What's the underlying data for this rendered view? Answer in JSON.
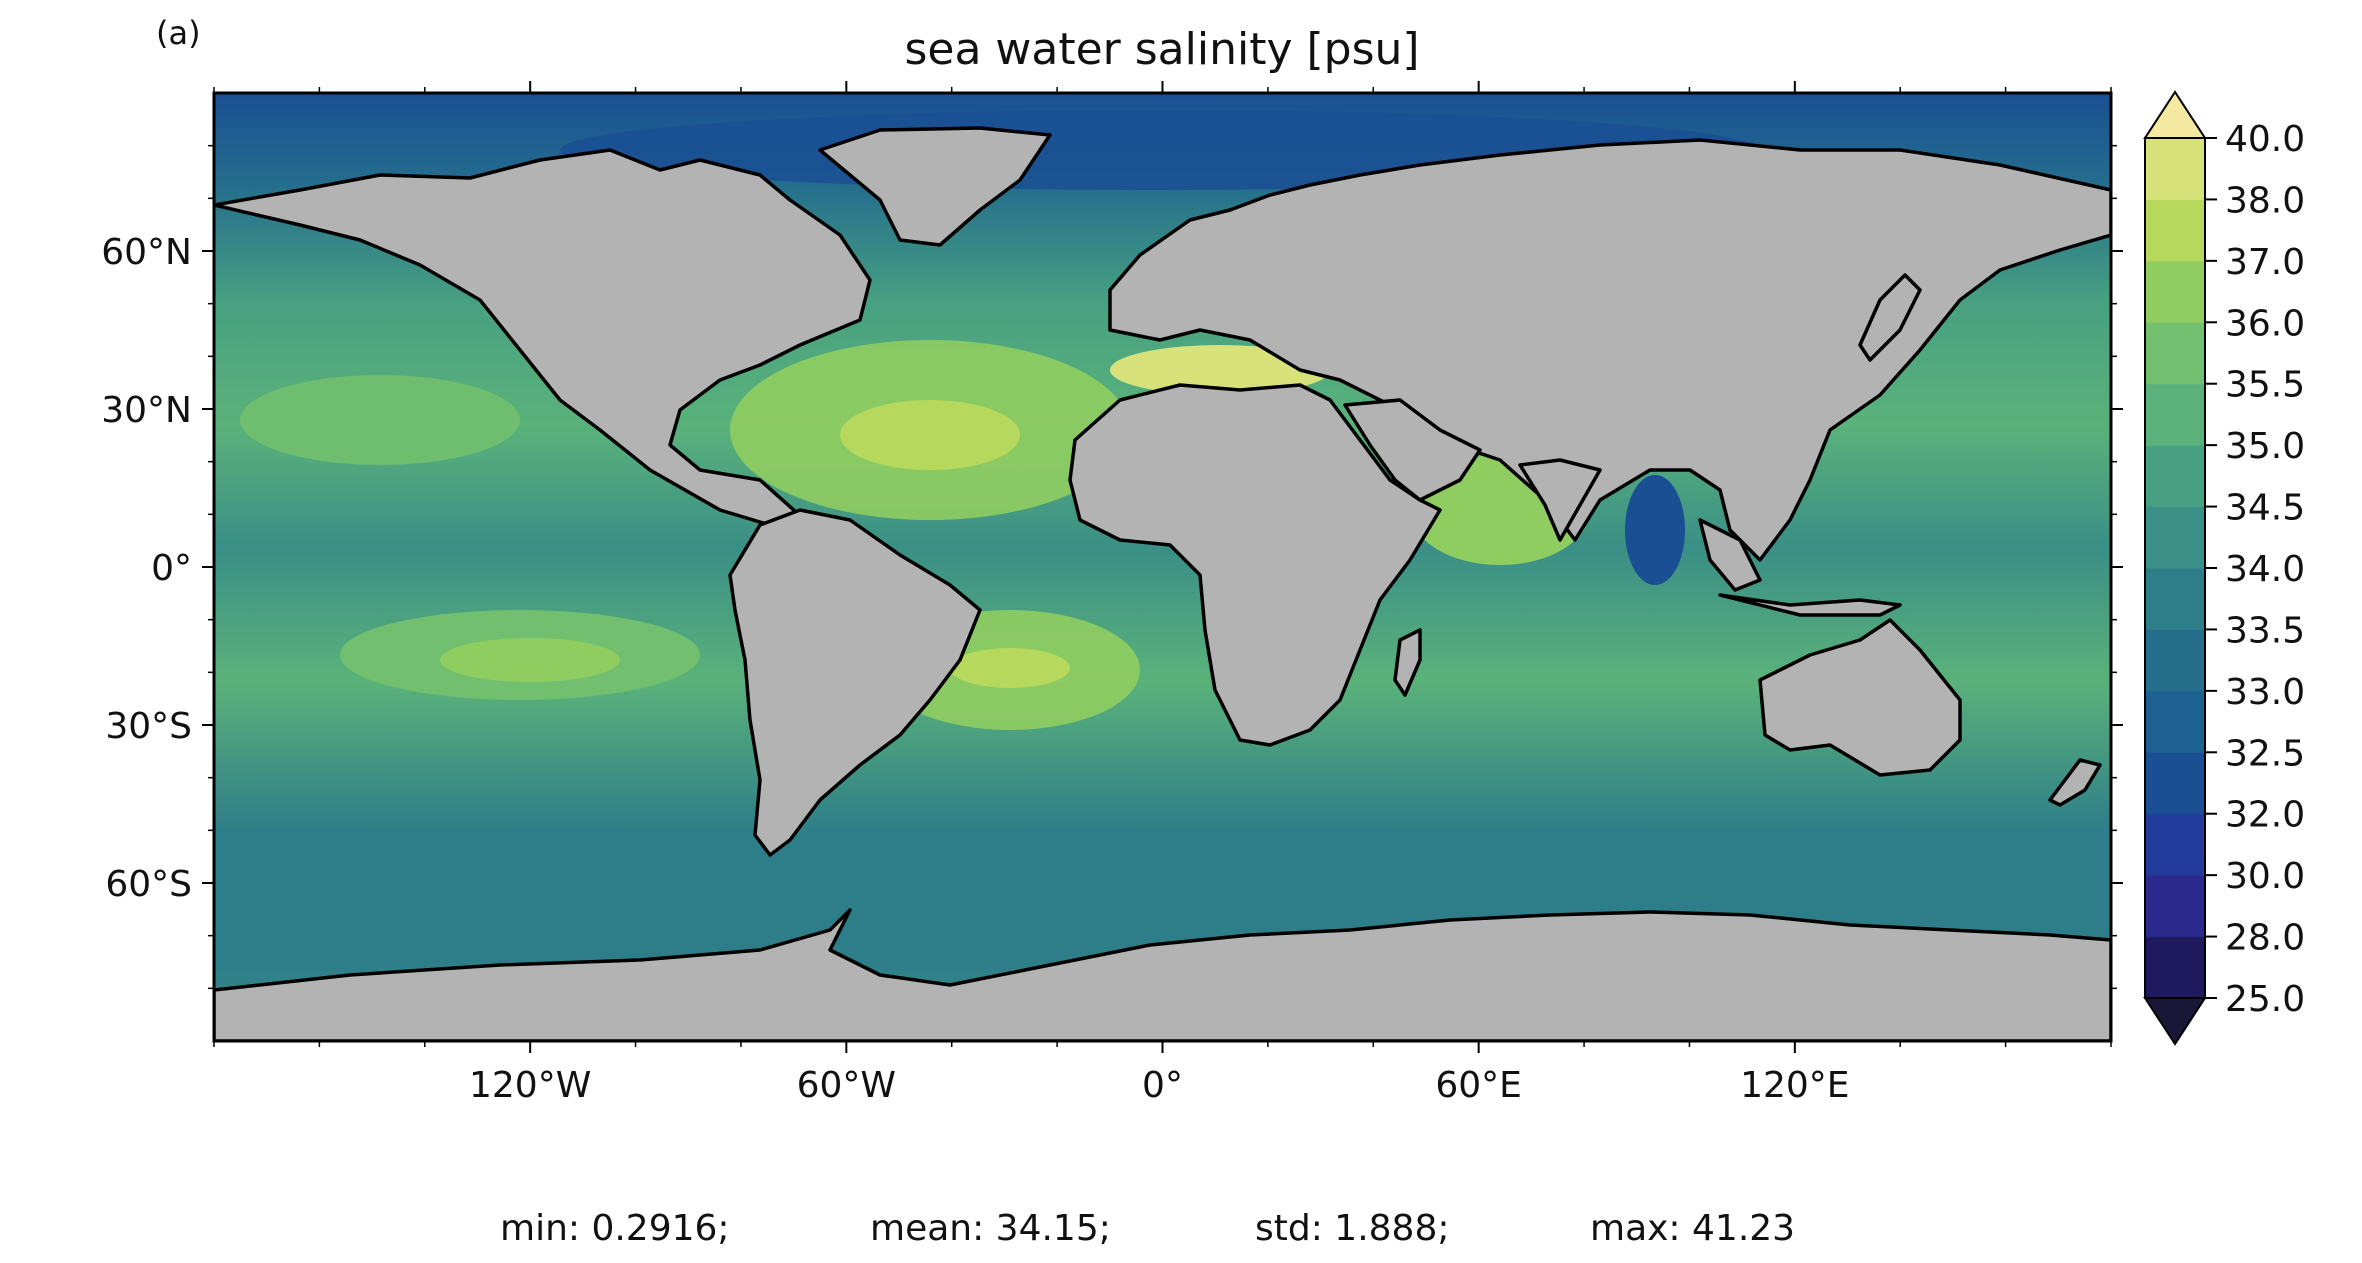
{
  "panel_label": "(a)",
  "title": "sea water salinity [psu]",
  "map": {
    "projection": "plate-carree",
    "lon_range": [
      -180,
      180
    ],
    "lat_range": [
      -90,
      90
    ],
    "land_color": "#b3b3b3",
    "coastline_color": "#000000",
    "lat_ticks": [
      {
        "value": 60,
        "label": "60°N"
      },
      {
        "value": 30,
        "label": "30°N"
      },
      {
        "value": 0,
        "label": "0°"
      },
      {
        "value": -30,
        "label": "30°S"
      },
      {
        "value": -60,
        "label": "60°S"
      }
    ],
    "lon_ticks": [
      {
        "value": -120,
        "label": "120°W"
      },
      {
        "value": -60,
        "label": "60°W"
      },
      {
        "value": 0,
        "label": "0°"
      },
      {
        "value": 60,
        "label": "60°E"
      },
      {
        "value": 120,
        "label": "120°E"
      }
    ]
  },
  "colorbar": {
    "extend": "both",
    "levels": [
      {
        "value": 25.0,
        "label": "25.0"
      },
      {
        "value": 28.0,
        "label": "28.0"
      },
      {
        "value": 30.0,
        "label": "30.0"
      },
      {
        "value": 32.0,
        "label": "32.0"
      },
      {
        "value": 32.5,
        "label": "32.5"
      },
      {
        "value": 33.0,
        "label": "33.0"
      },
      {
        "value": 33.5,
        "label": "33.5"
      },
      {
        "value": 34.0,
        "label": "34.0"
      },
      {
        "value": 34.5,
        "label": "34.5"
      },
      {
        "value": 35.0,
        "label": "35.0"
      },
      {
        "value": 35.5,
        "label": "35.5"
      },
      {
        "value": 36.0,
        "label": "36.0"
      },
      {
        "value": 37.0,
        "label": "37.0"
      },
      {
        "value": 38.0,
        "label": "38.0"
      },
      {
        "value": 40.0,
        "label": "40.0"
      }
    ],
    "colors": [
      "#1f1a5e",
      "#2a2a8c",
      "#233b9a",
      "#1a4f94",
      "#1d6191",
      "#256f8d",
      "#2e7e89",
      "#3a8f86",
      "#47a081",
      "#5ab27a",
      "#72c06f",
      "#90cd61",
      "#b6d85c",
      "#d8e27a"
    ],
    "under_color": "#1a1638",
    "over_color": "#f5e8a0"
  },
  "stats": {
    "min": "min: 0.2916;",
    "mean": "mean: 34.15;",
    "std": "std: 1.888;",
    "max": "max: 41.23"
  }
}
